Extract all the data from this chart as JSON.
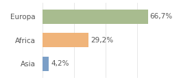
{
  "categories": [
    "Europa",
    "Africa",
    "Asia"
  ],
  "values": [
    66.7,
    29.2,
    4.2
  ],
  "labels": [
    "66,7%",
    "29,2%",
    "4,2%"
  ],
  "bar_colors": [
    "#a8bc8f",
    "#f0b47a",
    "#7b9fc7"
  ],
  "background_color": "#ffffff",
  "xlim": [
    0,
    80
  ],
  "bar_height": 0.62,
  "label_fontsize": 7.5,
  "category_fontsize": 7.5,
  "grid_color": "#dddddd",
  "text_color": "#555555"
}
